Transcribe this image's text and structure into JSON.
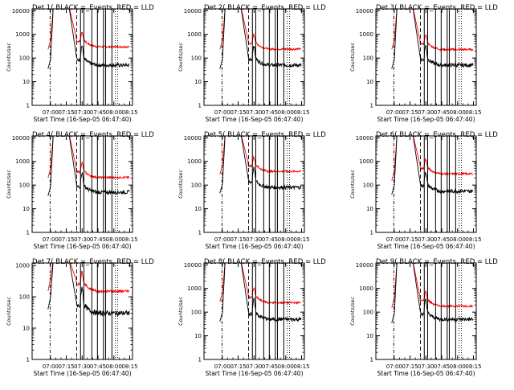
{
  "colors": {
    "events": "#000000",
    "lld": "#ff0000",
    "background": "#ffffff"
  },
  "chart_data": [
    {
      "type": "line",
      "title": "Det 1( BLACK =_Events, RED = LLD",
      "xlabel": "Start Time (16-Sep-05 06:47:40)",
      "ylabel": "Counts/sec",
      "yscale": "log",
      "ylim": [
        1,
        12000
      ],
      "xlim_min": [
        -5,
        90
      ],
      "x_tick_labels": [
        "07:00",
        "07:15",
        "07:30",
        "07:45",
        "08:00",
        "08:15"
      ],
      "x_tick_values_min": [
        12.33,
        27.33,
        42.33,
        57.33,
        72.33,
        87.33
      ],
      "y_tick_labels": [
        "1",
        "10",
        "100",
        "1000",
        "10000"
      ],
      "y_tick_values": [
        1,
        10,
        100,
        1000,
        10000
      ],
      "series": [
        {
          "name": "Events",
          "base": 50,
          "pre": 35,
          "peak": 14000
        },
        {
          "name": "LLD",
          "base": 300,
          "pre": 230,
          "peak": 14000
        }
      ]
    },
    {
      "type": "line",
      "title": "Det 2( BLACK =_Events, RED = LLD",
      "xlabel": "Start Time (16-Sep-05 06:47:40)",
      "ylabel": "Counts/sec",
      "yscale": "log",
      "ylim": [
        1,
        12000
      ],
      "xlim_min": [
        -5,
        90
      ],
      "x_tick_labels": [
        "07:00",
        "07:15",
        "07:30",
        "07:45",
        "08:00",
        "08:15"
      ],
      "x_tick_values_min": [
        12.33,
        27.33,
        42.33,
        57.33,
        72.33,
        87.33
      ],
      "y_tick_labels": [
        "1",
        "10",
        "100",
        "1000",
        "10000"
      ],
      "y_tick_values": [
        1,
        10,
        100,
        1000,
        10000
      ],
      "series": [
        {
          "name": "Events",
          "base": 50,
          "pre": 35,
          "peak": 14000
        },
        {
          "name": "LLD",
          "base": 240,
          "pre": 230,
          "peak": 14000
        }
      ]
    },
    {
      "type": "line",
      "title": "Det 3( BLACK =_Events, RED = LLD",
      "xlabel": "Start Time (16-Sep-05 06:47:40)",
      "ylabel": "Counts/sec",
      "yscale": "log",
      "ylim": [
        1,
        12000
      ],
      "xlim_min": [
        -5,
        90
      ],
      "x_tick_labels": [
        "07:00",
        "07:15",
        "07:30",
        "07:45",
        "08:00",
        "08:15"
      ],
      "x_tick_values_min": [
        12.33,
        27.33,
        42.33,
        57.33,
        72.33,
        87.33
      ],
      "y_tick_labels": [
        "1",
        "10",
        "100",
        "1000",
        "10000"
      ],
      "y_tick_values": [
        1,
        10,
        100,
        1000,
        10000
      ],
      "series": [
        {
          "name": "Events",
          "base": 50,
          "pre": 35,
          "peak": 14000
        },
        {
          "name": "LLD",
          "base": 230,
          "pre": 230,
          "peak": 14000
        }
      ]
    },
    {
      "type": "line",
      "title": "Det 4( BLACK =_Events, RED = LLD",
      "xlabel": "Start Time (16-Sep-05 06:47:40)",
      "ylabel": "Counts/sec",
      "yscale": "log",
      "ylim": [
        1,
        12000
      ],
      "xlim_min": [
        -5,
        90
      ],
      "x_tick_labels": [
        "07:00",
        "07:15",
        "07:30",
        "07:45",
        "08:00",
        "08:15"
      ],
      "x_tick_values_min": [
        12.33,
        27.33,
        42.33,
        57.33,
        72.33,
        87.33
      ],
      "y_tick_labels": [
        "1",
        "10",
        "100",
        "1000",
        "10000"
      ],
      "y_tick_values": [
        1,
        10,
        100,
        1000,
        10000
      ],
      "series": [
        {
          "name": "Events",
          "base": 50,
          "pre": 35,
          "peak": 14000
        },
        {
          "name": "LLD",
          "base": 210,
          "pre": 200,
          "peak": 14000
        }
      ]
    },
    {
      "type": "line",
      "title": "Det 5( BLACK =_Events, RED = LLD",
      "xlabel": "Start Time (16-Sep-05 06:47:40)",
      "ylabel": "Counts/sec",
      "yscale": "log",
      "ylim": [
        1,
        12000
      ],
      "xlim_min": [
        -5,
        90
      ],
      "x_tick_labels": [
        "07:00",
        "07:15",
        "07:30",
        "07:45",
        "08:00",
        "08:15"
      ],
      "x_tick_values_min": [
        12.33,
        27.33,
        42.33,
        57.33,
        72.33,
        87.33
      ],
      "y_tick_labels": [
        "1",
        "10",
        "100",
        "1000",
        "10000"
      ],
      "y_tick_values": [
        1,
        10,
        100,
        1000,
        10000
      ],
      "series": [
        {
          "name": "Events",
          "base": 80,
          "pre": 45,
          "peak": 14000
        },
        {
          "name": "LLD",
          "base": 380,
          "pre": 280,
          "peak": 14000
        }
      ]
    },
    {
      "type": "line",
      "title": "Det 6( BLACK =_Events, RED = LLD",
      "xlabel": "Start Time (16-Sep-05 06:47:40)",
      "ylabel": "Counts/sec",
      "yscale": "log",
      "ylim": [
        1,
        12000
      ],
      "xlim_min": [
        -5,
        90
      ],
      "x_tick_labels": [
        "07:00",
        "07:15",
        "07:30",
        "07:45",
        "08:00",
        "08:15"
      ],
      "x_tick_values_min": [
        12.33,
        27.33,
        42.33,
        57.33,
        72.33,
        87.33
      ],
      "y_tick_labels": [
        "1",
        "10",
        "100",
        "1000",
        "10000"
      ],
      "y_tick_values": [
        1,
        10,
        100,
        1000,
        10000
      ],
      "series": [
        {
          "name": "Events",
          "base": 55,
          "pre": 40,
          "peak": 14000
        },
        {
          "name": "LLD",
          "base": 300,
          "pre": 150,
          "peak": 14000
        }
      ]
    },
    {
      "type": "line",
      "title": "Det 7( BLACK =_Events, RED = LLD",
      "xlabel": "Start Time (16-Sep-05 06:47:40)",
      "ylabel": "Counts/sec",
      "yscale": "log",
      "ylim": [
        1,
        1200
      ],
      "xlim_min": [
        -5,
        90
      ],
      "x_tick_labels": [
        "07:00",
        "07:15",
        "07:30",
        "07:45",
        "08:00",
        "08:15"
      ],
      "x_tick_values_min": [
        12.33,
        27.33,
        42.33,
        57.33,
        72.33,
        87.33
      ],
      "y_tick_labels": [
        "1",
        "10",
        "100",
        "1000"
      ],
      "y_tick_values": [
        1,
        10,
        100,
        1000
      ],
      "series": [
        {
          "name": "Events",
          "base": 30,
          "pre": 40,
          "peak": 1500
        },
        {
          "name": "LLD",
          "base": 150,
          "pre": 150,
          "peak": 1500
        }
      ]
    },
    {
      "type": "line",
      "title": "Det 8( BLACK =_Events, RED = LLD",
      "xlabel": "Start Time (16-Sep-05 06:47:40)",
      "ylabel": "Counts/sec",
      "yscale": "log",
      "ylim": [
        1,
        12000
      ],
      "xlim_min": [
        -5,
        90
      ],
      "x_tick_labels": [
        "07:00",
        "07:15",
        "07:30",
        "07:45",
        "08:00",
        "08:15"
      ],
      "x_tick_values_min": [
        12.33,
        27.33,
        42.33,
        57.33,
        72.33,
        87.33
      ],
      "y_tick_labels": [
        "1",
        "10",
        "100",
        "1000",
        "10000"
      ],
      "y_tick_values": [
        1,
        10,
        100,
        1000,
        10000
      ],
      "series": [
        {
          "name": "Events",
          "base": 50,
          "pre": 40,
          "peak": 14000
        },
        {
          "name": "LLD",
          "base": 250,
          "pre": 270,
          "peak": 14000
        }
      ]
    },
    {
      "type": "line",
      "title": "Det 9( BLACK =_Events, RED = LLD",
      "xlabel": "Start Time (16-Sep-05 06:47:40)",
      "ylabel": "Counts/sec",
      "yscale": "log",
      "ylim": [
        1,
        12000
      ],
      "xlim_min": [
        -5,
        90
      ],
      "x_tick_labels": [
        "07:00",
        "07:15",
        "07:30",
        "07:45",
        "08:00",
        "08:15"
      ],
      "x_tick_values_min": [
        12.33,
        27.33,
        42.33,
        57.33,
        72.33,
        87.33
      ],
      "y_tick_labels": [
        "1",
        "10",
        "100",
        "1000",
        "10000"
      ],
      "y_tick_values": [
        1,
        10,
        100,
        1000,
        10000
      ],
      "series": [
        {
          "name": "Events",
          "base": 50,
          "pre": 35,
          "peak": 14000
        },
        {
          "name": "LLD",
          "base": 180,
          "pre": 150,
          "peak": 14000
        }
      ]
    }
  ],
  "markers": {
    "dashdot_min": [
      12.0
    ],
    "dashed_min": [
      37.2
    ],
    "solid_min": [
      40.8,
      44.0,
      51.5,
      56.8,
      62.5,
      64.5,
      70.5
    ],
    "dotted_min": [
      73.8,
      76.0
    ]
  }
}
